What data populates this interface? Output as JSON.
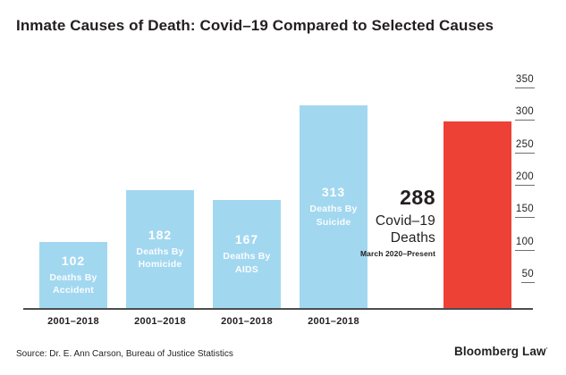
{
  "title": "Inmate Causes of Death: Covid–19 Compared to Selected Causes",
  "chart_data": {
    "type": "bar",
    "title": "Inmate Causes of Death: Covid–19 Compared to Selected Causes",
    "categories": [
      "Deaths By Accident",
      "Deaths By Homicide",
      "Deaths By AIDS",
      "Deaths By Suicide",
      "Covid–19 Deaths"
    ],
    "values": [
      102,
      182,
      167,
      313,
      288
    ],
    "xlabel": "",
    "ylabel": "",
    "ylim": [
      0,
      370
    ],
    "yticks": [
      350,
      300,
      250,
      200,
      150,
      100,
      50
    ],
    "grid": false,
    "legend": "none",
    "yaxis_side": "right",
    "bars": [
      {
        "value": 102,
        "value_label": "102",
        "cause_lines": [
          "Deaths By",
          "Accident"
        ],
        "period": "2001–2018",
        "color": "#A2D7F0",
        "label_position": "inside"
      },
      {
        "value": 182,
        "value_label": "182",
        "cause_lines": [
          "Deaths By",
          "Homicide"
        ],
        "period": "2001–2018",
        "color": "#A2D7F0",
        "label_position": "inside"
      },
      {
        "value": 167,
        "value_label": "167",
        "cause_lines": [
          "Deaths By",
          "AIDS"
        ],
        "period": "2001–2018",
        "color": "#A2D7F0",
        "label_position": "inside"
      },
      {
        "value": 313,
        "value_label": "313",
        "cause_lines": [
          "Deaths By",
          "Suicide"
        ],
        "period": "2001–2018",
        "color": "#A2D7F0",
        "label_position": "inside"
      },
      {
        "value": 288,
        "value_label": "288",
        "cause_lines": [
          "Covid–19",
          "Deaths"
        ],
        "period": "March 2020–Present",
        "color": "#EE4136",
        "label_position": "outside-left"
      }
    ]
  },
  "footer": {
    "source": "Source: Dr. E. Ann Carson, Bureau of Justice Statistics",
    "brand": "Bloomberg Law",
    "brand_mark": "·"
  },
  "colors": {
    "bar_blue": "#A2D7F0",
    "bar_red": "#EE4136",
    "text_dark": "#231F20",
    "bar_label_text": "#FFFFFF",
    "axis_line": "#4C4D4F",
    "tick_underline": "#6D6E71",
    "background": "#FFFFFF"
  }
}
